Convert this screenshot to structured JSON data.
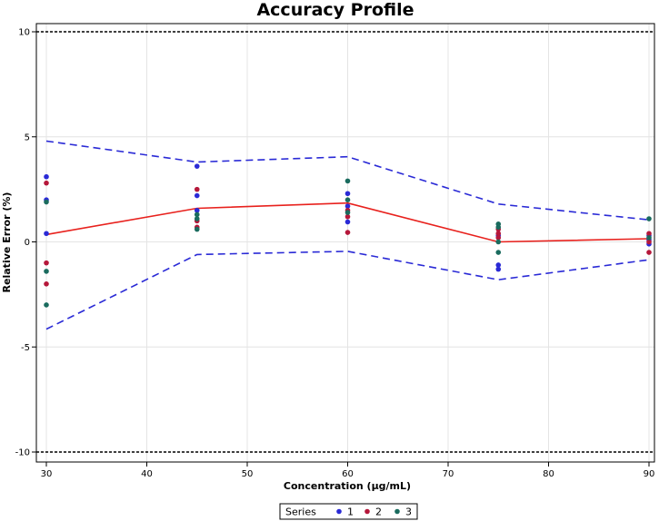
{
  "chart_data": {
    "type": "scatter",
    "title": "Accuracy Profile",
    "xlabel": "Concentration (μg/mL)",
    "ylabel": "Relative Error (%)",
    "xlim": [
      30,
      90
    ],
    "ylim": [
      -10,
      10
    ],
    "x_ticks": [
      30,
      40,
      50,
      60,
      70,
      80,
      90
    ],
    "y_ticks": [
      -10,
      -5,
      0,
      5,
      10
    ],
    "grid": true,
    "legend": {
      "title": "Series",
      "position": "bottom-center"
    },
    "series": [
      {
        "name": "1",
        "color": "#2a2ad6",
        "points": [
          [
            30,
            3.1
          ],
          [
            30,
            2.0
          ],
          [
            30,
            0.4
          ],
          [
            45,
            3.6
          ],
          [
            45,
            2.2
          ],
          [
            45,
            1.5
          ],
          [
            60,
            2.3
          ],
          [
            60,
            1.7
          ],
          [
            60,
            0.95
          ],
          [
            75,
            0.3
          ],
          [
            75,
            -1.1
          ],
          [
            75,
            -1.3
          ],
          [
            90,
            0.3
          ],
          [
            90,
            0.1
          ],
          [
            90,
            -0.1
          ]
        ]
      },
      {
        "name": "2",
        "color": "#b5173a",
        "points": [
          [
            30,
            2.8
          ],
          [
            30,
            -1.0
          ],
          [
            30,
            -2.0
          ],
          [
            45,
            2.5
          ],
          [
            45,
            1.0
          ],
          [
            45,
            0.7
          ],
          [
            60,
            1.5
          ],
          [
            60,
            1.2
          ],
          [
            60,
            0.45
          ],
          [
            75,
            0.6
          ],
          [
            75,
            0.4
          ],
          [
            75,
            0.2
          ],
          [
            90,
            0.4
          ],
          [
            90,
            0.0
          ],
          [
            90,
            -0.5
          ]
        ]
      },
      {
        "name": "3",
        "color": "#1a6b5e",
        "points": [
          [
            30,
            1.9
          ],
          [
            30,
            -1.4
          ],
          [
            30,
            -3.0
          ],
          [
            45,
            1.3
          ],
          [
            45,
            1.1
          ],
          [
            45,
            0.6
          ],
          [
            60,
            2.9
          ],
          [
            60,
            2.0
          ],
          [
            60,
            1.4
          ],
          [
            75,
            0.85
          ],
          [
            75,
            0.7
          ],
          [
            75,
            -0.5
          ],
          [
            75,
            0.0
          ],
          [
            90,
            1.1
          ],
          [
            90,
            0.2
          ]
        ]
      }
    ],
    "lines": {
      "mean": {
        "color": "#e8211d",
        "style": "solid",
        "x": [
          30,
          45,
          60,
          75,
          90
        ],
        "y": [
          0.35,
          1.6,
          1.85,
          0.0,
          0.15
        ]
      },
      "upper_tolerance": {
        "color": "#2a2ad6",
        "style": "dashed",
        "x": [
          30,
          45,
          60,
          75,
          90
        ],
        "y": [
          4.8,
          3.8,
          4.05,
          1.8,
          1.05
        ]
      },
      "lower_tolerance": {
        "color": "#2a2ad6",
        "style": "dashed",
        "x": [
          30,
          45,
          60,
          75,
          90
        ],
        "y": [
          -4.15,
          -0.6,
          -0.45,
          -1.8,
          -0.85
        ]
      },
      "acceptance_limits": {
        "color": "#000000",
        "style": "dotted",
        "y": [
          10,
          -10
        ]
      }
    }
  }
}
